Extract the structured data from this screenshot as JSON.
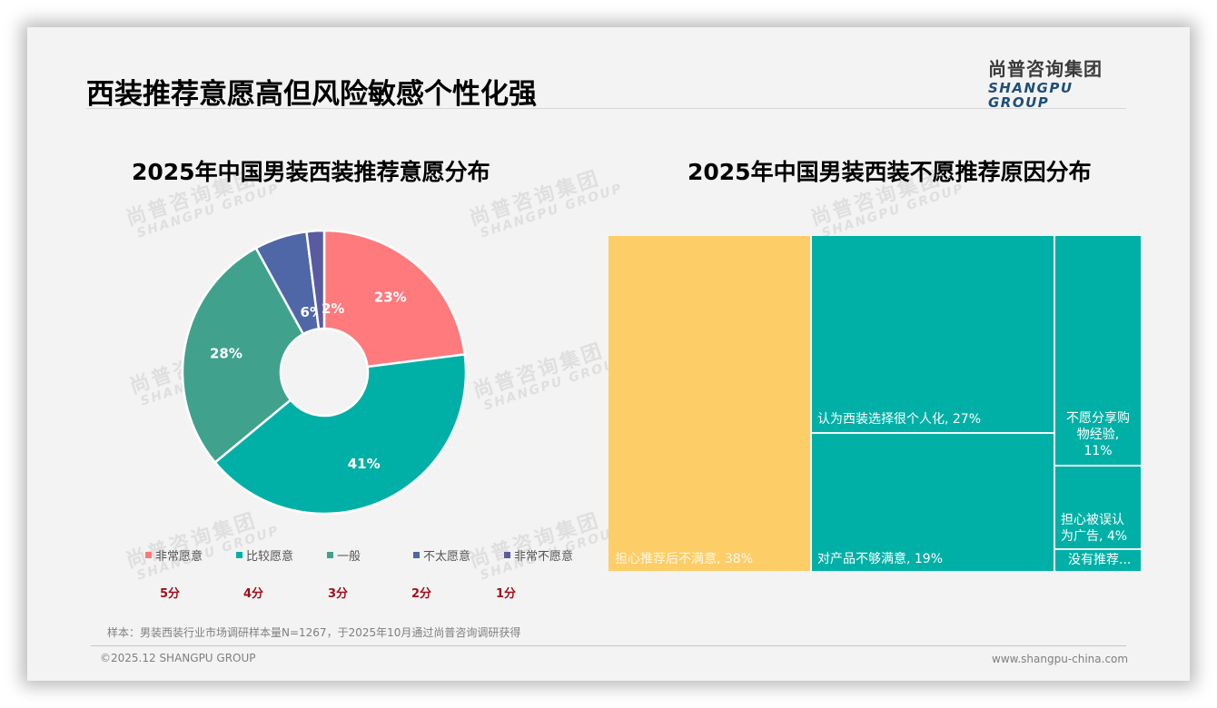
{
  "page": {
    "title": "西装推荐意愿高但风险敏感个性化强",
    "logo_cn": "尚普咨询集团",
    "logo_en": "SHANGPU GROUP",
    "watermark_cn": "尚普咨询集团",
    "watermark_en": "SHANGPU GROUP"
  },
  "footer": {
    "source": "样本：男装西装行业市场调研样本量N=1267，于2025年10月通过尚普咨询调研获得",
    "copyright": "©2025.12 SHANGPU GROUP",
    "website": "www.shangpu-china.com"
  },
  "chart_data": [
    {
      "type": "pie",
      "variant": "donut",
      "title": "2025年中国男装西装推荐意愿分布",
      "categories": [
        "非常愿意",
        "比较愿意",
        "一般",
        "不太愿意",
        "非常不愿意"
      ],
      "values": [
        23,
        41,
        28,
        6,
        2
      ],
      "labels": [
        "23%",
        "41%",
        "28%",
        "6%",
        "2%"
      ],
      "colors": [
        "#fe7a7d",
        "#00b0a6",
        "#40a28c",
        "#4f67a6",
        "#5a5aa0"
      ],
      "scores": [
        "5分",
        "4分",
        "3分",
        "2分",
        "1分"
      ],
      "legend_position": "bottom",
      "start_angle": "12 o'clock, clockwise"
    },
    {
      "type": "treemap",
      "title": "2025年中国男装西装不愿推荐原因分布",
      "categories": [
        "担心推荐后不满意",
        "认为西装选择很个人化",
        "对产品不够满意",
        "不愿分享购物经验",
        "担心被误认为广告",
        "没有推荐..."
      ],
      "values": [
        38,
        27,
        19,
        11,
        4,
        1
      ],
      "labels": [
        "担心推荐后不满意, 38%",
        "认为西装选择很个人化, 27%",
        "对产品不够满意, 19%",
        "不愿分享购物经验, 11%",
        "担心被误认为广告, 4%",
        "没有推荐..."
      ],
      "colors": [
        "#fdcd68",
        "#00b0a6",
        "#00b0a6",
        "#00b0a6",
        "#00b0a6",
        "#00b0a6"
      ]
    }
  ]
}
